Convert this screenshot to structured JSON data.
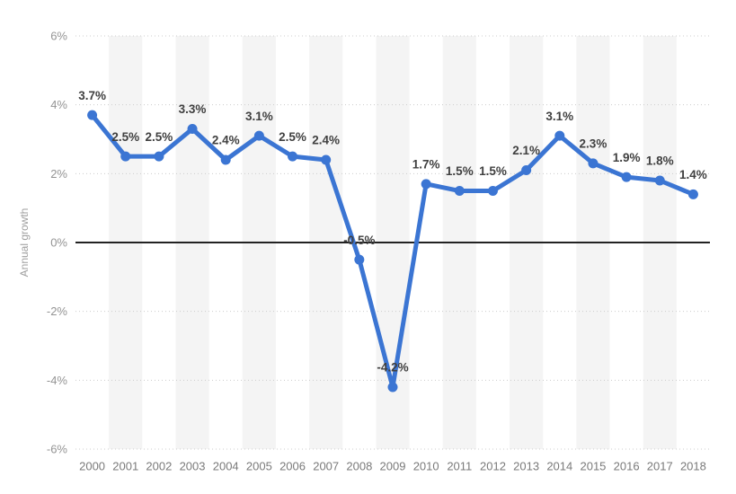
{
  "chart_data": {
    "type": "line",
    "title": "",
    "xlabel": "",
    "ylabel": "Annual growth",
    "categories": [
      "2000",
      "2001",
      "2002",
      "2003",
      "2004",
      "2005",
      "2006",
      "2007",
      "2008",
      "2009",
      "2010",
      "2011",
      "2012",
      "2013",
      "2014",
      "2015",
      "2016",
      "2017",
      "2018"
    ],
    "series": [
      {
        "name": "Annual growth",
        "values": [
          3.7,
          2.5,
          2.5,
          3.3,
          2.4,
          3.1,
          2.5,
          2.4,
          -0.5,
          -4.2,
          1.7,
          1.5,
          1.5,
          2.1,
          3.1,
          2.3,
          1.9,
          1.8,
          1.4
        ]
      }
    ],
    "point_labels": [
      "3.7%",
      "2.5%",
      "2.5%",
      "3.3%",
      "2.4%",
      "3.1%",
      "2.5%",
      "2.4%",
      "-0.5%",
      "-4.2%",
      "1.7%",
      "1.5%",
      "1.5%",
      "2.1%",
      "3.1%",
      "2.3%",
      "1.9%",
      "1.8%",
      "1.4%"
    ],
    "y_ticks": [
      {
        "value": 6,
        "label": "6%"
      },
      {
        "value": 4,
        "label": "4%"
      },
      {
        "value": 2,
        "label": "2%"
      },
      {
        "value": 0,
        "label": "0%"
      },
      {
        "value": -2,
        "label": "-2%"
      },
      {
        "value": -4,
        "label": "-4%"
      },
      {
        "value": -6,
        "label": "-6%"
      }
    ],
    "ylim": [
      -6,
      6
    ],
    "grid": "horizontal-dotted",
    "zero_line": true,
    "legend": "none",
    "alternating_column_bands": true,
    "colors": {
      "line": "#3b75d3",
      "marker": "#3b75d3",
      "band": "#f4f4f4",
      "grid": "#cccccc",
      "zero_line": "#222222",
      "data_label": "#404040",
      "y_tick_label": "#949494",
      "x_tick_label": "#7a7a7a",
      "axis_title": "#9e9e9e",
      "background": "#ffffff"
    }
  }
}
